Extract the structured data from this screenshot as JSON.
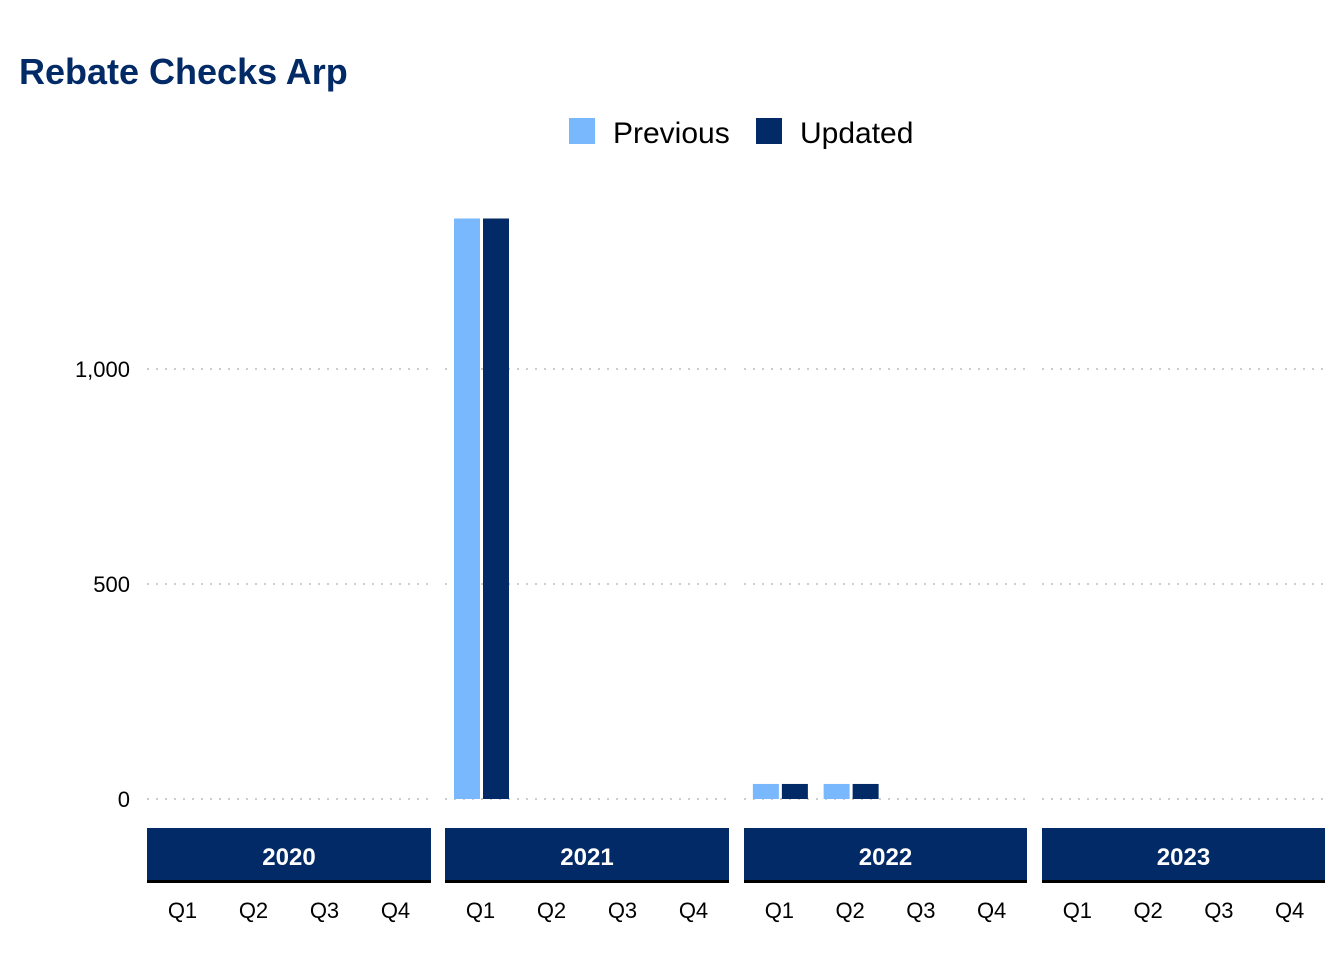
{
  "chart_data": {
    "type": "bar",
    "title": "Rebate Checks Arp",
    "xlabel": "",
    "ylabel": "",
    "ylim": [
      0,
      1400
    ],
    "yticks": [
      0,
      500,
      1000
    ],
    "ytick_labels": [
      "0",
      "500",
      "1,000"
    ],
    "grid": "horizontal-dotted",
    "legend": "top",
    "colors": {
      "Previous": "#7ab8fe",
      "Updated": "#022a66",
      "strip": "#022a66",
      "title": "#022a66"
    },
    "facets": [
      {
        "label": "2020",
        "categories": [
          "Q1",
          "Q2",
          "Q3",
          "Q4"
        ],
        "series": [
          {
            "name": "Previous",
            "values": [
              0,
              0,
              0,
              0
            ]
          },
          {
            "name": "Updated",
            "values": [
              0,
              0,
              0,
              0
            ]
          }
        ]
      },
      {
        "label": "2021",
        "categories": [
          "Q1",
          "Q2",
          "Q3",
          "Q4"
        ],
        "series": [
          {
            "name": "Previous",
            "values": [
              1350,
              0,
              0,
              0
            ]
          },
          {
            "name": "Updated",
            "values": [
              1350,
              0,
              0,
              0
            ]
          }
        ]
      },
      {
        "label": "2022",
        "categories": [
          "Q1",
          "Q2",
          "Q3",
          "Q4"
        ],
        "series": [
          {
            "name": "Previous",
            "values": [
              35,
              35,
              0,
              0
            ]
          },
          {
            "name": "Updated",
            "values": [
              35,
              35,
              0,
              0
            ]
          }
        ]
      },
      {
        "label": "2023",
        "categories": [
          "Q1",
          "Q2",
          "Q3",
          "Q4"
        ],
        "series": [
          {
            "name": "Previous",
            "values": [
              0,
              0,
              0,
              0
            ]
          },
          {
            "name": "Updated",
            "values": [
              0,
              0,
              0,
              0
            ]
          }
        ]
      }
    ]
  }
}
